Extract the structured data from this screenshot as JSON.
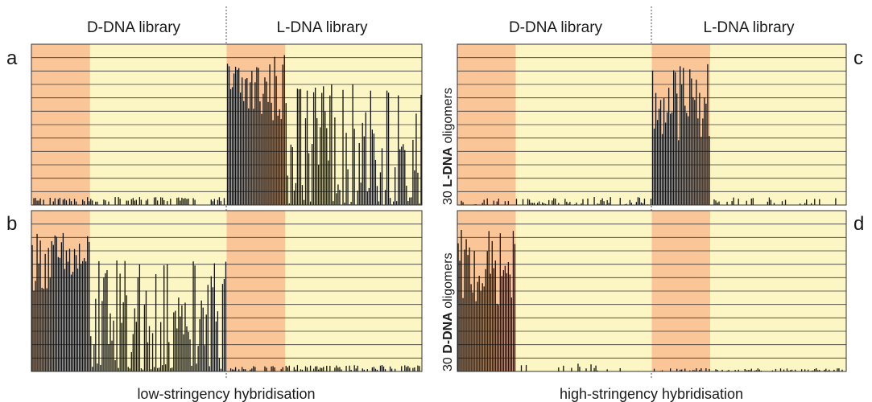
{
  "colors": {
    "d_region": "#fac597",
    "l_region": "#fbf6c3",
    "gridline": "#3a3a3a",
    "bar": "#111111"
  },
  "headers": {
    "left_d": "D-DNA library",
    "left_l": "L-DNA library",
    "right_d": "D-DNA library",
    "right_l": "L-DNA library"
  },
  "footers": {
    "left": "low-stringency hybridisation",
    "right": "high-stringency hybridisation"
  },
  "ylabels": {
    "top": {
      "count": "30",
      "bold": "L-DNA",
      "rest": "oligomers"
    },
    "bottom": {
      "count": "30",
      "bold": "D-DNA",
      "rest": "oligomers"
    }
  },
  "chart_data": [
    {
      "type": "bar",
      "panel": "a",
      "regions": [
        {
          "library": "D-DNA library",
          "highlighted_fraction": 0.3
        },
        {
          "library": "L-DNA library",
          "highlighted_fraction": 0.3
        }
      ],
      "approx_bar_height_fraction": {
        "D-DNA library": [
          0.02,
          0.05
        ],
        "L-DNA library": [
          0.05,
          0.95
        ]
      },
      "ylim": [
        0,
        1
      ],
      "gridlines": 12
    },
    {
      "type": "bar",
      "panel": "b",
      "regions": [
        {
          "library": "D-DNA library",
          "highlighted_fraction": 0.3
        },
        {
          "library": "L-DNA library",
          "highlighted_fraction": 0.3
        }
      ],
      "approx_bar_height_fraction": {
        "D-DNA library": [
          0.1,
          0.88
        ],
        "L-DNA library": [
          0.01,
          0.04
        ]
      },
      "ylim": [
        0,
        1
      ],
      "gridlines": 12
    },
    {
      "type": "bar",
      "panel": "c",
      "regions": [
        {
          "library": "D-DNA library",
          "highlighted_fraction": 0.3
        },
        {
          "library": "L-DNA library",
          "highlighted_fraction": 0.3
        }
      ],
      "approx_bar_height_fraction": {
        "D-DNA library": [
          0.0,
          0.05
        ],
        "L-DNA library": [
          0.0,
          0.9
        ]
      },
      "ylim": [
        0,
        1
      ],
      "gridlines": 12
    },
    {
      "type": "bar",
      "panel": "d",
      "regions": [
        {
          "library": "D-DNA library",
          "highlighted_fraction": 0.3
        },
        {
          "library": "L-DNA library",
          "highlighted_fraction": 0.3
        }
      ],
      "approx_bar_height_fraction": {
        "D-DNA library": [
          0.0,
          0.88
        ],
        "L-DNA library": [
          0.0,
          0.02
        ]
      },
      "ylim": [
        0,
        1
      ],
      "gridlines": 12
    }
  ]
}
